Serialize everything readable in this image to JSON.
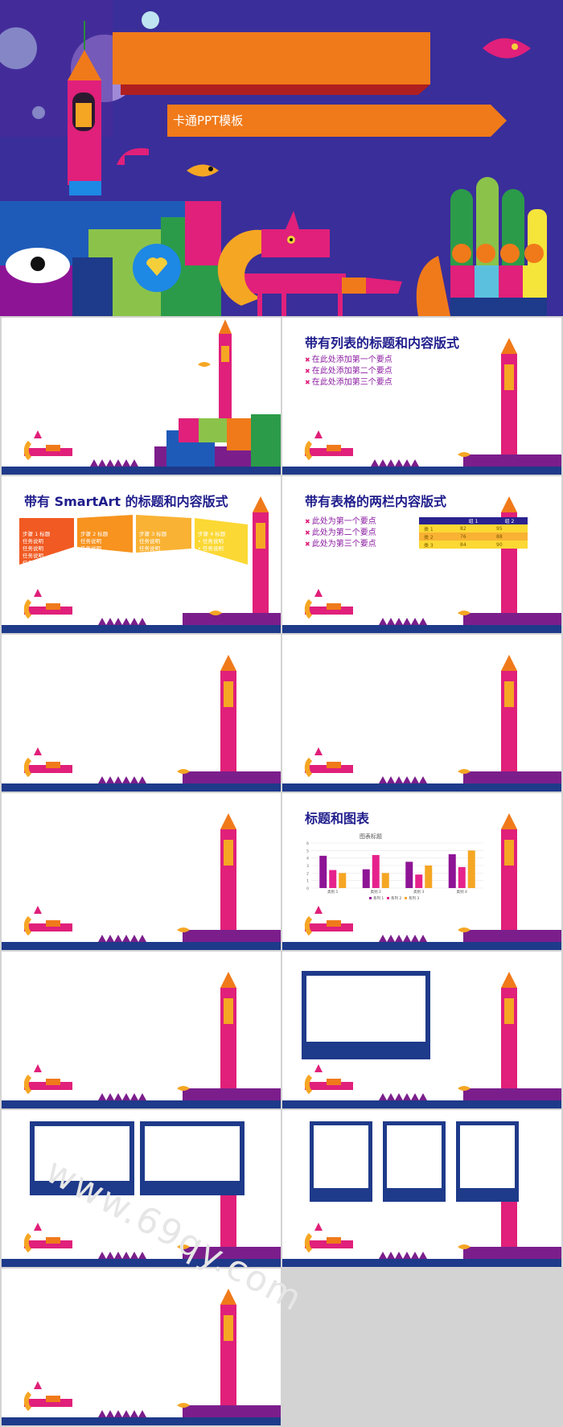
{
  "title_slide": {
    "title": "卡通PPT模板"
  },
  "slide_list": {
    "title": "带有列表的标题和内容版式",
    "bullets": [
      "在此处添加第一个要点",
      "在此处添加第二个要点",
      "在此处添加第三个要点"
    ]
  },
  "slide_smartart": {
    "title": "带有 SmartArt 的标题和内容版式",
    "steps": [
      {
        "heading": "步骤 1 标题",
        "lines": [
          "任务说明",
          "任务说明",
          "任务说明",
          "任务说明"
        ]
      },
      {
        "heading": "步骤 2 标题",
        "lines": [
          "任务说明",
          "任务说明",
          "任务说明"
        ]
      },
      {
        "heading": "步骤 3 标题",
        "lines": [
          "任务说明",
          "任务说明"
        ]
      },
      {
        "heading": "步骤 4 标题",
        "lines": [
          "• 任务说明",
          "• 任务说明"
        ]
      }
    ]
  },
  "slide_table": {
    "title": "带有表格的两栏内容版式",
    "bullets": [
      "此处为第一个要点",
      "此处为第二个要点",
      "此处为第三个要点"
    ],
    "headers": [
      "",
      "组 1",
      "组 2"
    ],
    "rows": [
      [
        "类 1",
        "82",
        "95"
      ],
      [
        "类 2",
        "76",
        "88"
      ],
      [
        "类 3",
        "84",
        "90"
      ]
    ]
  },
  "slide_chart": {
    "title": "标题和图表"
  },
  "chart_data": {
    "type": "bar",
    "title": "图表标题",
    "categories": [
      "类别 1",
      "类别 2",
      "类别 3",
      "类别 4"
    ],
    "series": [
      {
        "name": "系列 1",
        "values": [
          4.3,
          2.5,
          3.5,
          4.5
        ],
        "color": "#8e1496"
      },
      {
        "name": "系列 2",
        "values": [
          2.4,
          4.4,
          1.8,
          2.8
        ],
        "color": "#e6238c"
      },
      {
        "name": "系列 3",
        "values": [
          2.0,
          2.0,
          3.0,
          5.0
        ],
        "color": "#f5a623"
      }
    ],
    "ylim": [
      0,
      6
    ],
    "yticks": [
      "0",
      "1",
      "2",
      "3",
      "4",
      "5",
      "6"
    ],
    "legend": "bottom",
    "grid": true
  },
  "watermark": "www.69qy.com",
  "colors": {
    "navy": "#1e3a8a",
    "purple": "#7b1e8c",
    "magenta": "#e0207a",
    "orange": "#f07a1a",
    "title_blue": "#1f1d8c"
  }
}
